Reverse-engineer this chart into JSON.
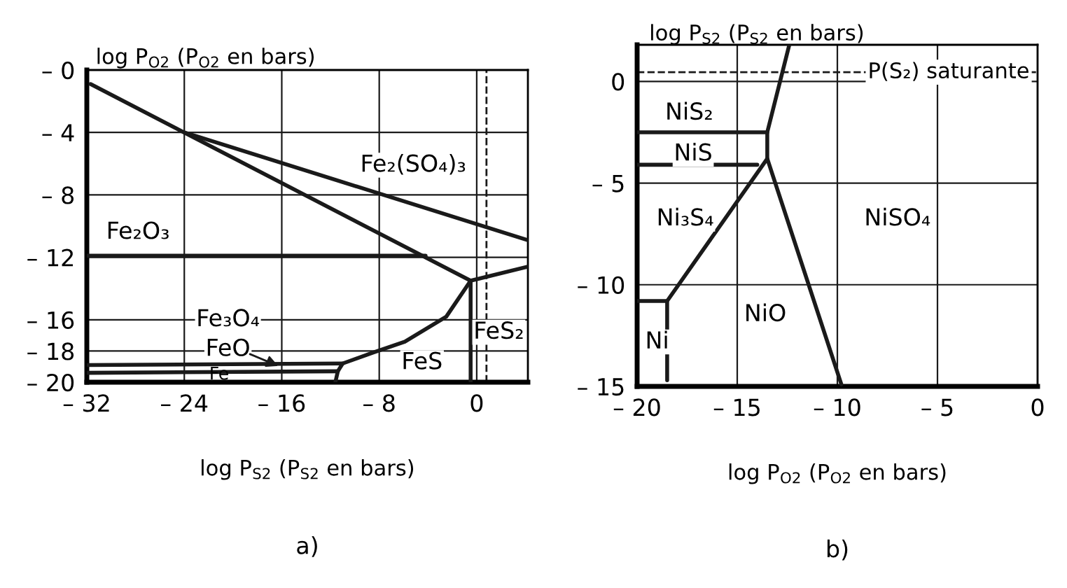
{
  "chart_data": [
    {
      "type": "line",
      "xlabel": "log P$_{S2}$ (P$_{S2}$ en bars)",
      "ylabel": "log P$_{O2}$ (P$_{O2}$ en bars)",
      "xlim": [
        -32,
        4.2
      ],
      "ylim": [
        -20,
        0
      ],
      "xticks": [
        {
          "value": -32,
          "label": "– 32"
        },
        {
          "value": -24,
          "label": "– 24"
        },
        {
          "value": -16,
          "label": "– 16"
        },
        {
          "value": -8,
          "label": "– 8"
        },
        0
      ],
      "yticks": [
        {
          "value": 0,
          "label": "– 0"
        },
        {
          "value": -4,
          "label": "– 4"
        },
        {
          "value": -8,
          "label": "– 8"
        },
        {
          "value": -12,
          "label": "– 12"
        },
        {
          "value": -16,
          "label": "– 16"
        },
        {
          "value": -18,
          "label": "– 18"
        },
        {
          "value": -20,
          "label": "– 20"
        }
      ],
      "grid": true,
      "marker": "none",
      "line_style": "solid",
      "series": [
        {
          "color": "#1a1a1a",
          "x": [
            -31.7,
            -0.5
          ],
          "values": [
            -0.9,
            -13.5
          ]
        },
        {
          "color": "#1a1a1a",
          "x": [
            -24,
            4.2
          ],
          "values": [
            -4,
            -10.9
          ]
        },
        {
          "color": "#1a1a1a",
          "x": [
            -32,
            -4.2
          ],
          "values": [
            -11.9,
            -11.9
          ]
        },
        {
          "color": "#1a1a1a",
          "x": [
            -0.5,
            4.2
          ],
          "values": [
            -13.5,
            -12.6
          ]
        },
        {
          "color": "#1a1a1a",
          "x": [
            -0.5,
            -0.5
          ],
          "values": [
            -13.5,
            -20
          ]
        },
        {
          "color": "#1a1a1a",
          "x": [
            -0.5,
            -2.5,
            -5.9,
            -8.5,
            -11,
            -11.4,
            -11.6
          ],
          "values": [
            -13.5,
            -15.8,
            -17.4,
            -18.1,
            -18.8,
            -19.3,
            -20
          ]
        },
        {
          "color": "#1a1a1a",
          "x": [
            -32,
            -11
          ],
          "values": [
            -18.9,
            -18.8
          ]
        },
        {
          "color": "#1a1a1a",
          "x": [
            -32,
            -11.4
          ],
          "values": [
            -19.4,
            -19.3
          ]
        }
      ],
      "ref_lines": [
        {
          "axis": "x",
          "value": 0.8,
          "color": "#1a1a1a",
          "line_style": "dashed"
        }
      ],
      "annotations": [
        "Fe₂(SO₄)₃",
        "Fe₂O₃",
        "Fe₃O₄",
        "FeO",
        "FeS",
        "FeS₂",
        "Fe",
        "a)"
      ]
    },
    {
      "type": "line",
      "xlabel": "log P$_{O2}$ (P$_{O2}$ en bars)",
      "ylabel": "log P$_{S2}$ (P$_{S2}$ en bars)",
      "xlim": [
        -20,
        0
      ],
      "ylim": [
        -15,
        1.8
      ],
      "xticks": [
        {
          "value": -20,
          "label": "– 20"
        },
        {
          "value": -15,
          "label": "– 15"
        },
        {
          "value": -10,
          "label": "– 10"
        },
        {
          "value": -5,
          "label": "– 5"
        },
        0
      ],
      "yticks": [
        0,
        {
          "value": -5,
          "label": "– 5"
        },
        {
          "value": -10,
          "label": "– 10"
        },
        {
          "value": -15,
          "label": "– 15"
        }
      ],
      "grid": true,
      "marker": "none",
      "line_style": "solid",
      "series": [
        {
          "color": "#1a1a1a",
          "x": [
            -12.4,
            -13.5,
            -13.5,
            -9.8
          ],
          "values": [
            1.8,
            -2.5,
            -3.8,
            -14.9
          ]
        },
        {
          "color": "#1a1a1a",
          "x": [
            -20,
            -13.5
          ],
          "values": [
            -2.5,
            -2.5
          ]
        },
        {
          "color": "#1a1a1a",
          "x": [
            -20,
            -14.0
          ],
          "values": [
            -4.1,
            -4.1
          ]
        },
        {
          "color": "#1a1a1a",
          "x": [
            -13.5,
            -18.5
          ],
          "values": [
            -3.8,
            -10.8
          ]
        },
        {
          "color": "#1a1a1a",
          "x": [
            -20,
            -18.5,
            -18.5
          ],
          "values": [
            -10.8,
            -10.8,
            -14.7
          ]
        }
      ],
      "ref_lines": [
        {
          "axis": "y",
          "value": 0.45,
          "label": "P(S₂) saturante",
          "color": "#1a1a1a",
          "line_style": "dashed"
        }
      ],
      "annotations": [
        "NiS₂",
        "NiS",
        "Ni₃S₄",
        "NiSO₄",
        "NiO",
        "Ni",
        "b)"
      ]
    }
  ]
}
